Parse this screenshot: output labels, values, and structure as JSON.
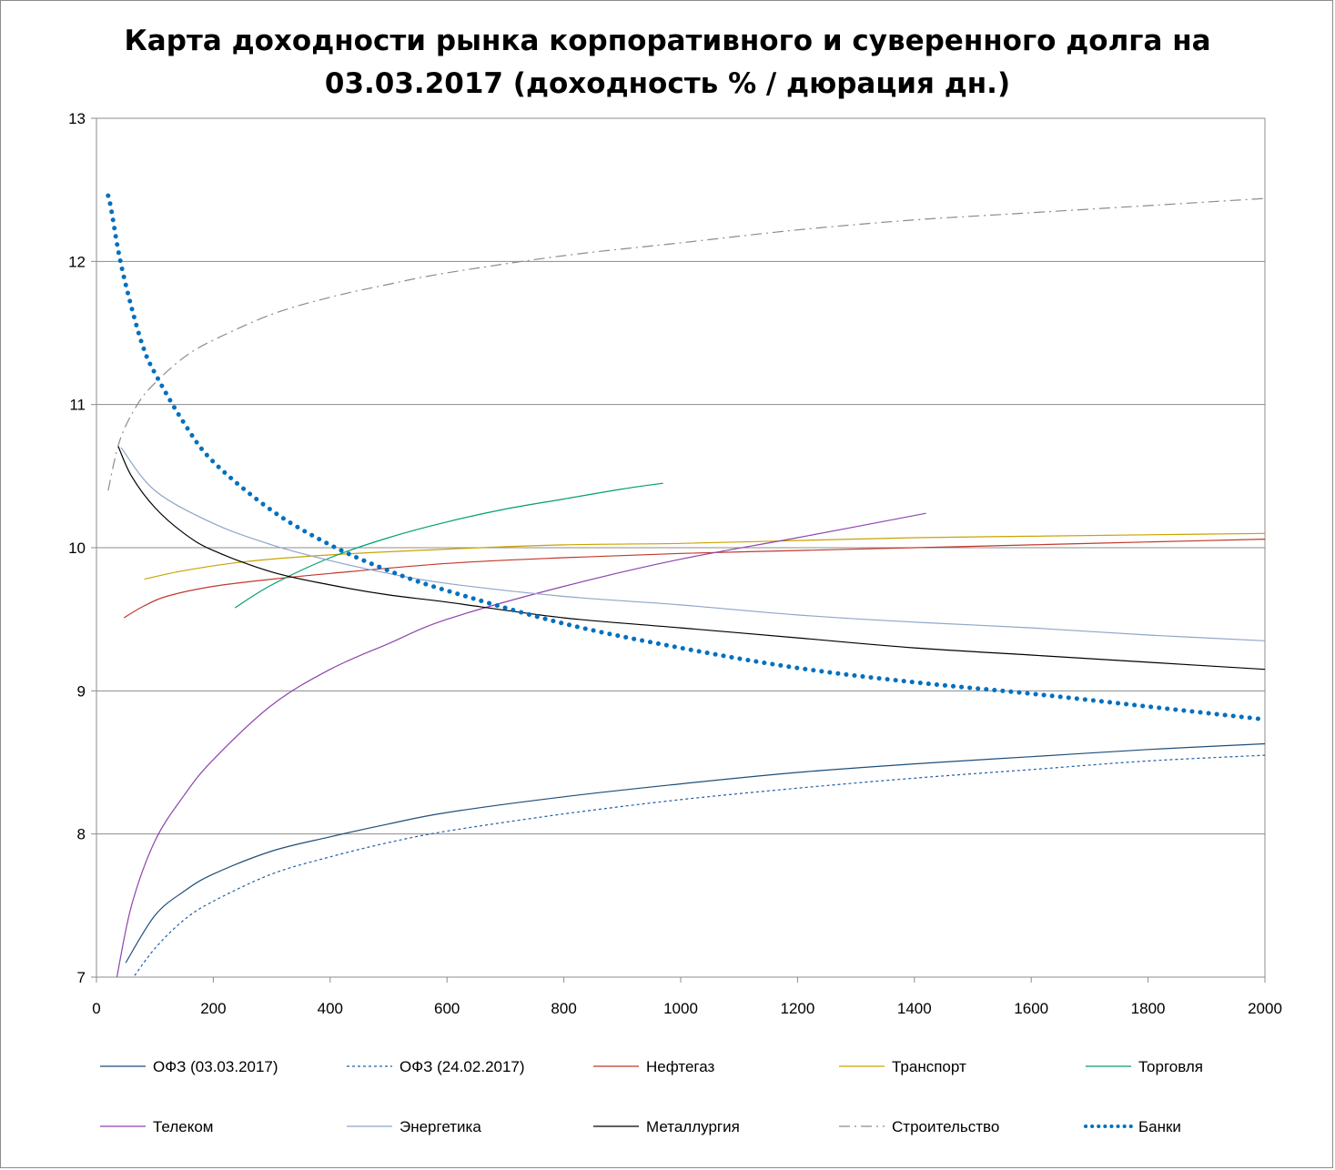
{
  "chart_data": {
    "type": "line",
    "title_line1": "Карта доходности рынка корпоративного и суверенного долга на",
    "title_line2": "03.03.2017 (доходность % / дюрация дн.)",
    "xlabel": "",
    "ylabel": "",
    "xlim": [
      0,
      2000
    ],
    "ylim": [
      7,
      13
    ],
    "x_ticks": [
      "0",
      "200",
      "400",
      "600",
      "800",
      "1000",
      "1200",
      "1400",
      "1600",
      "1800",
      "2000"
    ],
    "y_ticks": [
      "7",
      "8",
      "9",
      "10",
      "11",
      "12",
      "13"
    ],
    "grid": "horizontal",
    "legend_position": "bottom",
    "series": [
      {
        "name": "ОФЗ (03.03.2017)",
        "color": "#1f4e79",
        "style": "solid",
        "width": 1.2,
        "x": [
          50,
          100,
          150,
          200,
          300,
          400,
          500,
          600,
          800,
          1000,
          1200,
          1400,
          1600,
          1800,
          2000
        ],
        "y": [
          7.1,
          7.43,
          7.6,
          7.72,
          7.88,
          7.98,
          8.07,
          8.15,
          8.26,
          8.35,
          8.43,
          8.49,
          8.54,
          8.59,
          8.63
        ]
      },
      {
        "name": "ОФЗ (24.02.2017)",
        "color": "#1f5fa6",
        "style": "dotted",
        "width": 1.2,
        "x": [
          60,
          100,
          150,
          200,
          300,
          400,
          500,
          600,
          800,
          1000,
          1200,
          1400,
          1600,
          1800,
          2000
        ],
        "y": [
          6.98,
          7.2,
          7.4,
          7.53,
          7.72,
          7.84,
          7.94,
          8.02,
          8.14,
          8.24,
          8.32,
          8.39,
          8.45,
          8.51,
          8.55
        ]
      },
      {
        "name": "Нефтегаз",
        "color": "#c0392b",
        "style": "solid",
        "width": 1.2,
        "x": [
          47,
          80,
          120,
          200,
          300,
          400,
          600,
          800,
          1000,
          1200,
          1400,
          1600,
          1800,
          2000
        ],
        "y": [
          9.51,
          9.59,
          9.66,
          9.73,
          9.78,
          9.82,
          9.89,
          9.93,
          9.96,
          9.98,
          10.0,
          10.02,
          10.04,
          10.06
        ]
      },
      {
        "name": "Транспорт",
        "color": "#c9a300",
        "style": "solid",
        "width": 1.2,
        "x": [
          82,
          150,
          250,
          400,
          600,
          800,
          1000,
          1200,
          1400,
          1600,
          1800,
          2000
        ],
        "y": [
          9.78,
          9.84,
          9.9,
          9.95,
          9.99,
          10.02,
          10.03,
          10.05,
          10.07,
          10.08,
          10.09,
          10.1
        ]
      },
      {
        "name": "Торговля",
        "color": "#009e73",
        "style": "solid",
        "width": 1.2,
        "x": [
          237,
          300,
          400,
          500,
          600,
          700,
          800,
          900,
          970
        ],
        "y": [
          9.58,
          9.74,
          9.93,
          10.07,
          10.18,
          10.27,
          10.34,
          10.41,
          10.45
        ]
      },
      {
        "name": "Телеком",
        "color": "#8e44ad",
        "style": "solid",
        "width": 1.2,
        "x": [
          35,
          60,
          100,
          150,
          200,
          300,
          400,
          500,
          600,
          800,
          1000,
          1200,
          1420
        ],
        "y": [
          7.0,
          7.5,
          7.95,
          8.27,
          8.52,
          8.9,
          9.15,
          9.33,
          9.5,
          9.73,
          9.92,
          10.07,
          10.24
        ]
      },
      {
        "name": "Энергетика",
        "color": "#8ea6c8",
        "style": "solid",
        "width": 1.2,
        "x": [
          42,
          100,
          200,
          300,
          400,
          500,
          600,
          800,
          1000,
          1200,
          1400,
          1600,
          1800,
          2000
        ],
        "y": [
          10.7,
          10.4,
          10.17,
          10.02,
          9.91,
          9.82,
          9.75,
          9.66,
          9.6,
          9.53,
          9.48,
          9.44,
          9.39,
          9.35
        ]
      },
      {
        "name": "Металлургия",
        "color": "#000000",
        "style": "solid",
        "width": 1.2,
        "x": [
          37,
          60,
          100,
          150,
          200,
          300,
          400,
          500,
          600,
          800,
          1000,
          1200,
          1400,
          1600,
          1800,
          2000
        ],
        "y": [
          10.71,
          10.5,
          10.28,
          10.1,
          9.98,
          9.83,
          9.74,
          9.67,
          9.62,
          9.51,
          9.44,
          9.37,
          9.3,
          9.25,
          9.2,
          9.15
        ]
      },
      {
        "name": "Строительство",
        "color": "#8c8c8c",
        "style": "dashdot",
        "width": 1.2,
        "x": [
          20,
          40,
          70,
          100,
          150,
          200,
          300,
          400,
          500,
          600,
          800,
          1000,
          1200,
          1400,
          1600,
          1800,
          2000
        ],
        "y": [
          10.4,
          10.75,
          11.0,
          11.15,
          11.33,
          11.45,
          11.63,
          11.75,
          11.84,
          11.92,
          12.04,
          12.13,
          12.22,
          12.29,
          12.34,
          12.39,
          12.44
        ]
      },
      {
        "name": "Банки",
        "color": "#0070c0",
        "style": "dotted-thick",
        "width": 5,
        "x": [
          20,
          25,
          40,
          60,
          80,
          100,
          150,
          200,
          300,
          400,
          500,
          600,
          800,
          1000,
          1200,
          1400,
          1600,
          1800,
          2000
        ],
        "y": [
          12.46,
          12.37,
          12.02,
          11.68,
          11.4,
          11.22,
          10.87,
          10.6,
          10.26,
          10.02,
          9.84,
          9.7,
          9.47,
          9.3,
          9.16,
          9.06,
          8.98,
          8.89,
          8.8
        ]
      }
    ]
  }
}
